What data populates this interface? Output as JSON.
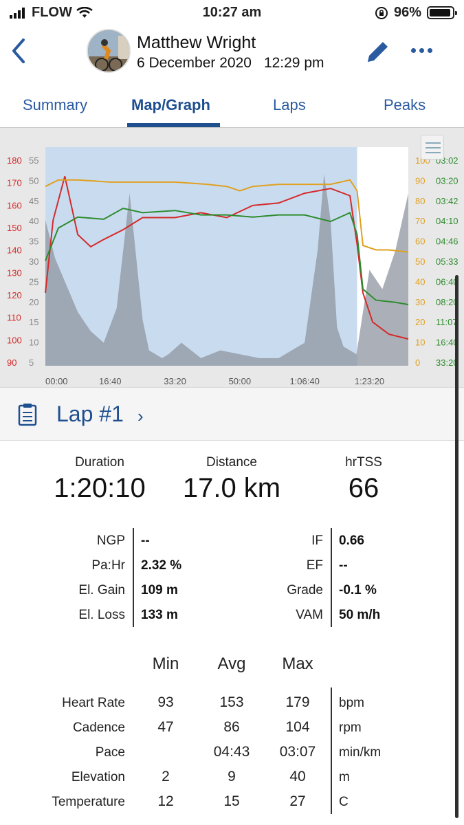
{
  "status": {
    "carrier": "FLOW",
    "time": "10:27 am",
    "battery": "96%"
  },
  "header": {
    "name": "Matthew Wright",
    "date": "6 December 2020",
    "time": "12:29 pm"
  },
  "tabs": [
    {
      "label": "Summary"
    },
    {
      "label": "Map/Graph"
    },
    {
      "label": "Laps"
    },
    {
      "label": "Peaks"
    }
  ],
  "chart_data": {
    "type": "line",
    "x_ticks": [
      "00:00",
      "16:40",
      "33:20",
      "50:00",
      "1:06:40",
      "1:23:20"
    ],
    "x_range_s": [
      0,
      5600
    ],
    "highlight_lap_s": [
      0,
      4810
    ],
    "axes": {
      "hr": {
        "ticks": [
          "180",
          "170",
          "160",
          "150",
          "140",
          "130",
          "120",
          "110",
          "100",
          "90"
        ],
        "range": [
          90,
          180
        ],
        "color": "#d42a2a"
      },
      "elevation": {
        "ticks": [
          "55",
          "50",
          "45",
          "40",
          "35",
          "30",
          "25",
          "20",
          "15",
          "10",
          "5"
        ],
        "range": [
          0,
          57
        ],
        "color": "#888888"
      },
      "cadence": {
        "ticks": [
          "100",
          "90",
          "80",
          "70",
          "60",
          "50",
          "40",
          "30",
          "20",
          "10",
          "0"
        ],
        "range": [
          0,
          100
        ],
        "color": "#e0a020"
      },
      "pace": {
        "ticks": [
          "03:02",
          "03:20",
          "03:42",
          "04:10",
          "04:46",
          "05:33",
          "06:40",
          "08:20",
          "11:07",
          "16:40",
          "33:20"
        ],
        "color": "#2e8b2e"
      }
    },
    "series": [
      {
        "name": "Heart Rate",
        "axis": "hr",
        "color": "#d42a2a",
        "x": [
          0,
          120,
          300,
          500,
          700,
          900,
          1200,
          1500,
          2000,
          2400,
          2800,
          3200,
          3600,
          4000,
          4400,
          4700,
          4810,
          4900,
          5050,
          5300,
          5600
        ],
        "values": [
          120,
          150,
          168,
          144,
          139,
          142,
          146,
          151,
          151,
          153,
          151,
          156,
          157,
          161,
          163,
          160,
          140,
          120,
          108,
          103,
          101
        ]
      },
      {
        "name": "Cadence",
        "axis": "cadence",
        "color": "#e0a020",
        "x": [
          0,
          200,
          500,
          1000,
          1500,
          2000,
          2500,
          2800,
          3000,
          3100,
          3200,
          3600,
          4000,
          4400,
          4700,
          4810,
          4900,
          5100,
          5300,
          5600
        ],
        "values": [
          82,
          85,
          85,
          84,
          84,
          84,
          83,
          82,
          80,
          81,
          82,
          83,
          83,
          83,
          85,
          80,
          55,
          53,
          53,
          52
        ]
      },
      {
        "name": "Pace",
        "axis": "pace",
        "color": "#2e8b2e",
        "x": [
          0,
          200,
          500,
          900,
          1200,
          1500,
          2000,
          2400,
          2800,
          3200,
          3600,
          4000,
          4400,
          4700,
          4810,
          4900,
          5100,
          5400,
          5600
        ],
        "values": [
          48,
          63,
          68,
          67,
          72,
          70,
          71,
          69,
          69,
          68,
          69,
          69,
          66,
          70,
          60,
          35,
          30,
          29,
          28
        ]
      }
    ],
    "elevation": {
      "x": [
        0,
        150,
        300,
        500,
        700,
        900,
        1100,
        1300,
        1500,
        1600,
        1700,
        1800,
        1900,
        2100,
        2400,
        2700,
        3000,
        3300,
        3600,
        4000,
        4200,
        4300,
        4400,
        4500,
        4600,
        4800,
        5000,
        5200,
        5400,
        5600
      ],
      "values": [
        38,
        28,
        22,
        14,
        9,
        6,
        15,
        45,
        12,
        4,
        3,
        2,
        3,
        6,
        2,
        4,
        3,
        2,
        2,
        6,
        30,
        50,
        38,
        10,
        5,
        3,
        25,
        20,
        30,
        45
      ]
    }
  },
  "lap": {
    "title": "Lap #1",
    "chevron": "›"
  },
  "summary": [
    {
      "label": "Duration",
      "value": "1:20:10"
    },
    {
      "label": "Distance",
      "value": "17.0 km"
    },
    {
      "label": "hrTSS",
      "value": "66"
    }
  ],
  "metrics_left": [
    {
      "label": "NGP",
      "value": "--"
    },
    {
      "label": "Pa:Hr",
      "value": "2.32 %"
    },
    {
      "label": "El. Gain",
      "value": "109 m"
    },
    {
      "label": "El. Loss",
      "value": "133 m"
    }
  ],
  "metrics_right": [
    {
      "label": "IF",
      "value": "0.66"
    },
    {
      "label": "EF",
      "value": "--"
    },
    {
      "label": "Grade",
      "value": "-0.1 %"
    },
    {
      "label": "VAM",
      "value": "50 m/h"
    }
  ],
  "table": {
    "headers": [
      "Min",
      "Avg",
      "Max"
    ],
    "rows": [
      {
        "label": "Heart Rate",
        "min": "93",
        "avg": "153",
        "max": "179",
        "unit": "bpm"
      },
      {
        "label": "Cadence",
        "min": "47",
        "avg": "86",
        "max": "104",
        "unit": "rpm"
      },
      {
        "label": "Pace",
        "min": "",
        "avg": "04:43",
        "max": "03:07",
        "unit": "min/km"
      },
      {
        "label": "Elevation",
        "min": "2",
        "avg": "9",
        "max": "40",
        "unit": "m"
      },
      {
        "label": "Temperature",
        "min": "12",
        "avg": "15",
        "max": "27",
        "unit": "C"
      }
    ]
  },
  "icons": [
    "signal-icon",
    "wifi-icon",
    "rotation-lock-icon",
    "battery-icon",
    "back-chevron-icon",
    "pencil-icon",
    "more-dots-icon",
    "chart-menu-icon",
    "clipboard-icon",
    "chevron-right-icon"
  ]
}
